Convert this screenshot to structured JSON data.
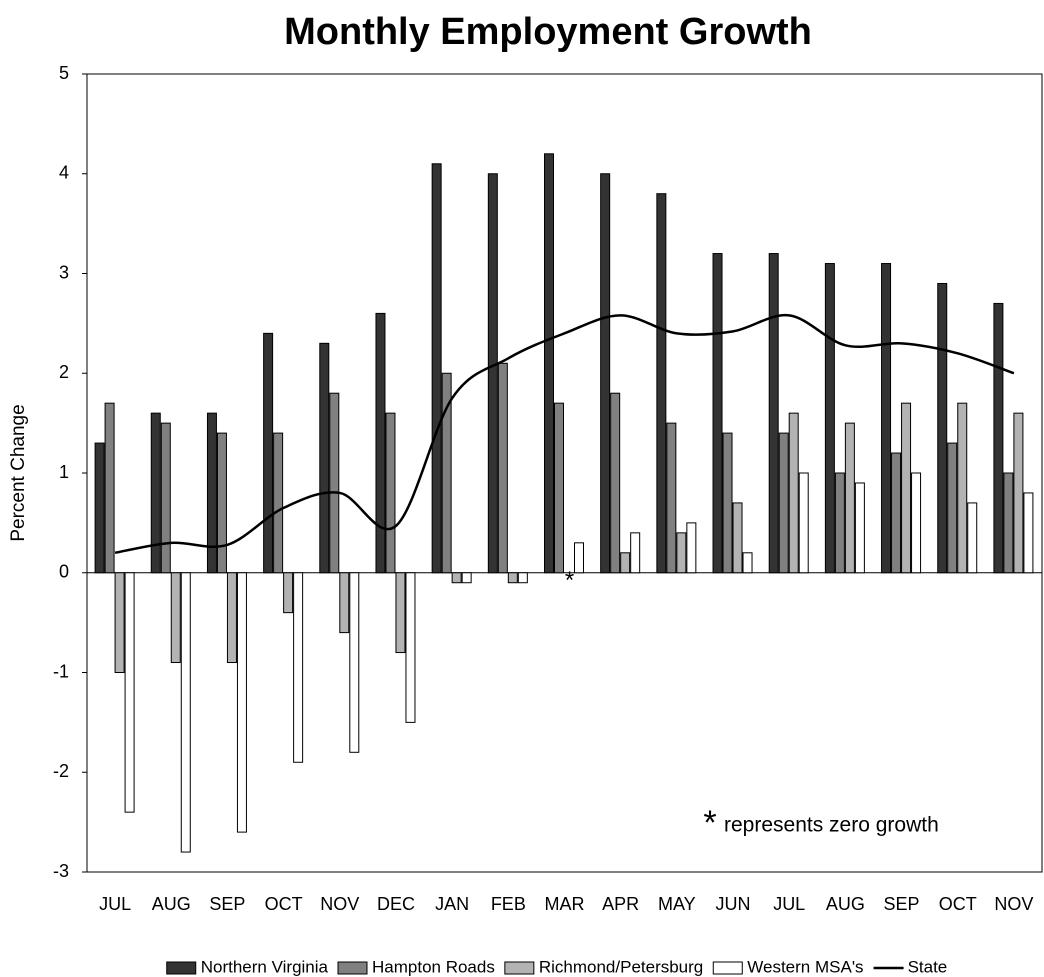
{
  "chart_data": {
    "type": "bar",
    "title": "Monthly Employment Growth",
    "y_label": "Percent Change",
    "categories": [
      "JUL",
      "AUG",
      "SEP",
      "OCT",
      "NOV",
      "DEC",
      "JAN",
      "FEB",
      "MAR",
      "APR",
      "MAY",
      "JUN",
      "JUL",
      "AUG",
      "SEP",
      "OCT",
      "NOV"
    ],
    "series": [
      {
        "name": "Northern Virginia",
        "type": "bar",
        "color": "#333333",
        "values": [
          1.3,
          1.6,
          1.6,
          2.4,
          2.3,
          2.6,
          4.1,
          4.0,
          4.2,
          4.0,
          3.8,
          3.2,
          3.2,
          3.1,
          3.1,
          2.9,
          2.7
        ]
      },
      {
        "name": "Hampton Roads",
        "type": "bar",
        "color": "#808080",
        "values": [
          1.7,
          1.5,
          1.4,
          1.4,
          1.8,
          1.6,
          2.0,
          2.1,
          1.7,
          1.8,
          1.5,
          1.4,
          1.4,
          1.0,
          1.2,
          1.3,
          1.0
        ]
      },
      {
        "name": "Richmond/Petersburg",
        "type": "bar",
        "color": "#b3b3b3",
        "values": [
          -1.0,
          -0.9,
          -0.9,
          -0.4,
          -0.6,
          -0.8,
          -0.1,
          -0.1,
          0,
          0.2,
          0.4,
          0.7,
          1.6,
          1.5,
          1.7,
          1.7,
          1.6
        ]
      },
      {
        "name": "Western MSA's",
        "type": "bar",
        "color": "#ffffff",
        "values": [
          -2.4,
          -2.8,
          -2.6,
          -1.9,
          -1.8,
          -1.5,
          -0.1,
          -0.1,
          0.3,
          0.4,
          0.5,
          0.2,
          1.0,
          0.9,
          1.0,
          0.7,
          0.8
        ]
      },
      {
        "name": "State",
        "type": "line",
        "color": "#000000",
        "values": [
          0.2,
          0.3,
          0.28,
          0.65,
          0.8,
          0.47,
          1.75,
          2.15,
          2.4,
          2.58,
          2.4,
          2.42,
          2.58,
          2.28,
          2.3,
          2.2,
          2.0
        ]
      }
    ],
    "zero_marker": "*",
    "annotation": "represents zero growth",
    "ylim": [
      -3,
      5
    ],
    "yticks": [
      -3,
      -2,
      -1,
      0,
      1,
      2,
      3,
      4,
      5
    ],
    "grid": false,
    "legend": "bottom"
  }
}
